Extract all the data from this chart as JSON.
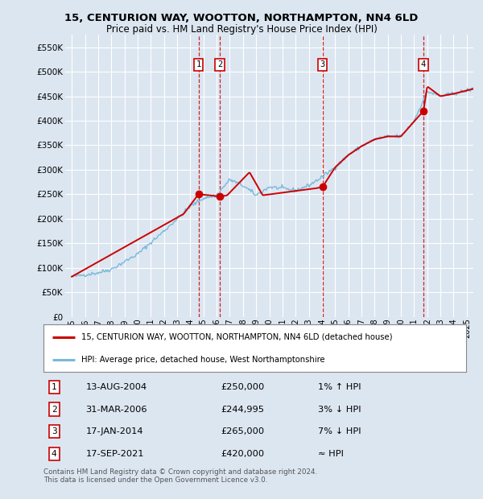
{
  "title": "15, CENTURION WAY, WOOTTON, NORTHAMPTON, NN4 6LD",
  "subtitle": "Price paid vs. HM Land Registry's House Price Index (HPI)",
  "ylim": [
    0,
    575000
  ],
  "yticks": [
    0,
    50000,
    100000,
    150000,
    200000,
    250000,
    300000,
    350000,
    400000,
    450000,
    500000,
    550000
  ],
  "ytick_labels": [
    "£0",
    "£50K",
    "£100K",
    "£150K",
    "£200K",
    "£250K",
    "£300K",
    "£350K",
    "£400K",
    "£450K",
    "£500K",
    "£550K"
  ],
  "background_color": "#dce6f1",
  "plot_bg_color": "#dce6f1",
  "grid_color": "#ffffff",
  "hpi_line_color": "#7ab8d9",
  "price_line_color": "#cc0000",
  "sale_marker_color": "#cc0000",
  "dashed_line_color": "#cc0000",
  "legend_box_color": "#cc0000",
  "transactions": [
    {
      "date": 2004.62,
      "price": 250000,
      "label": "1"
    },
    {
      "date": 2006.25,
      "price": 244995,
      "label": "2"
    },
    {
      "date": 2014.05,
      "price": 265000,
      "label": "3"
    },
    {
      "date": 2021.71,
      "price": 420000,
      "label": "4"
    }
  ],
  "table_rows": [
    {
      "num": "1",
      "date": "13-AUG-2004",
      "price": "£250,000",
      "hpi": "1% ↑ HPI"
    },
    {
      "num": "2",
      "date": "31-MAR-2006",
      "price": "£244,995",
      "hpi": "3% ↓ HPI"
    },
    {
      "num": "3",
      "date": "17-JAN-2014",
      "price": "£265,000",
      "hpi": "7% ↓ HPI"
    },
    {
      "num": "4",
      "date": "17-SEP-2021",
      "price": "£420,000",
      "hpi": "≈ HPI"
    }
  ],
  "legend_entries": [
    "15, CENTURION WAY, WOOTTON, NORTHAMPTON, NN4 6LD (detached house)",
    "HPI: Average price, detached house, West Northamptonshire"
  ],
  "footnote": "Contains HM Land Registry data © Crown copyright and database right 2024.\nThis data is licensed under the Open Government Licence v3.0.",
  "xlim": [
    1994.5,
    2025.5
  ],
  "xticks": [
    1995,
    1996,
    1997,
    1998,
    1999,
    2000,
    2001,
    2002,
    2003,
    2004,
    2005,
    2006,
    2007,
    2008,
    2009,
    2010,
    2011,
    2012,
    2013,
    2014,
    2015,
    2016,
    2017,
    2018,
    2019,
    2020,
    2021,
    2022,
    2023,
    2024,
    2025
  ]
}
